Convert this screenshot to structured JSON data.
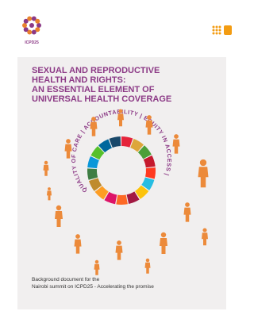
{
  "header": {
    "logo_text": "ICPD25"
  },
  "title": [
    "SEXUAL AND REPRODUCTIVE",
    "HEALTH AND RIGHTS:",
    "AN ESSENTIAL ELEMENT OF",
    "UNIVERSAL HEALTH COVERAGE"
  ],
  "ring_text": "QUALITY OF CARE | ACCOUNTABILITY | EQUITY IN ACCESS |",
  "footer": [
    "Background document for the",
    "Nairobi summit on ICPD25 - Accelerating the promise"
  ]
}
